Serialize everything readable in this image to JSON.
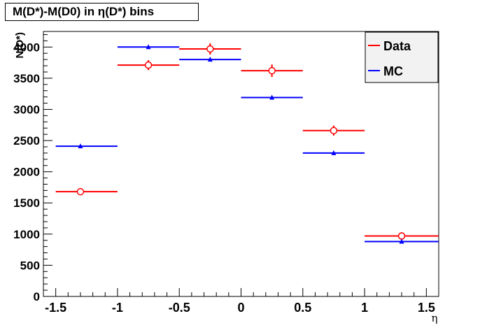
{
  "chart_data": {
    "type": "scatter",
    "title": "M(D*)-M(D0) in η(D*) bins",
    "xlabel": "η",
    "ylabel": "N(D*)",
    "xlim": [
      -1.6,
      1.6
    ],
    "ylim": [
      0,
      4250
    ],
    "x_ticks": [
      "-1.5",
      "-1",
      "-0.5",
      "0",
      "0.5",
      "1",
      "1.5"
    ],
    "y_ticks": [
      "0",
      "500",
      "1000",
      "1500",
      "2000",
      "2500",
      "3000",
      "3500",
      "4000"
    ],
    "legend_position": "top-right",
    "series": [
      {
        "name": "Data",
        "color": "#ff0000",
        "marker": "open-circle",
        "points": [
          {
            "x": -1.3,
            "y": 1680,
            "xlo": -1.5,
            "xhi": -1.0,
            "err": 40
          },
          {
            "x": -0.75,
            "y": 3710,
            "xlo": -1.0,
            "xhi": -0.5,
            "err": 80
          },
          {
            "x": -0.25,
            "y": 3970,
            "xlo": -0.5,
            "xhi": 0.0,
            "err": 90
          },
          {
            "x": 0.25,
            "y": 3620,
            "xlo": 0.0,
            "xhi": 0.5,
            "err": 100
          },
          {
            "x": 0.75,
            "y": 2660,
            "xlo": 0.5,
            "xhi": 1.0,
            "err": 80
          },
          {
            "x": 1.3,
            "y": 970,
            "xlo": 1.0,
            "xhi": 1.6,
            "err": 60
          }
        ]
      },
      {
        "name": "MC",
        "color": "#0000ff",
        "marker": "triangle",
        "points": [
          {
            "x": -1.3,
            "y": 2410,
            "xlo": -1.5,
            "xhi": -1.0,
            "err": 25
          },
          {
            "x": -0.75,
            "y": 4000,
            "xlo": -1.0,
            "xhi": -0.5,
            "err": 30
          },
          {
            "x": -0.25,
            "y": 3800,
            "xlo": -0.5,
            "xhi": 0.0,
            "err": 30
          },
          {
            "x": 0.25,
            "y": 3190,
            "xlo": 0.0,
            "xhi": 0.5,
            "err": 25
          },
          {
            "x": 0.75,
            "y": 2300,
            "xlo": 0.5,
            "xhi": 1.0,
            "err": 25
          },
          {
            "x": 1.3,
            "y": 880,
            "xlo": 1.0,
            "xhi": 1.6,
            "err": 15
          }
        ]
      }
    ]
  }
}
